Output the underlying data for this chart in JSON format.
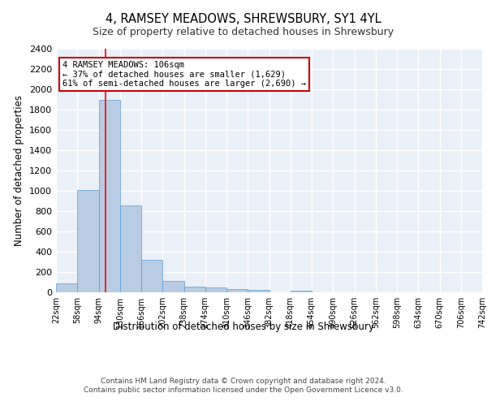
{
  "title": "4, RAMSEY MEADOWS, SHREWSBURY, SY1 4YL",
  "subtitle": "Size of property relative to detached houses in Shrewsbury",
  "xlabel": "Distribution of detached houses by size in Shrewsbury",
  "ylabel": "Number of detached properties",
  "bar_values": [
    90,
    1010,
    1900,
    860,
    320,
    115,
    55,
    50,
    35,
    25,
    0,
    20,
    0,
    0,
    0,
    0,
    0,
    0,
    0,
    0
  ],
  "bin_labels": [
    "22sqm",
    "58sqm",
    "94sqm",
    "130sqm",
    "166sqm",
    "202sqm",
    "238sqm",
    "274sqm",
    "310sqm",
    "346sqm",
    "382sqm",
    "418sqm",
    "454sqm",
    "490sqm",
    "526sqm",
    "562sqm",
    "598sqm",
    "634sqm",
    "670sqm",
    "706sqm",
    "742sqm"
  ],
  "bar_color": "#b8cce4",
  "bar_edge_color": "#5b9bd5",
  "bg_color": "#eaf0f8",
  "grid_color": "#ffffff",
  "red_line_x": 2.33,
  "annotation_text": "4 RAMSEY MEADOWS: 106sqm\n← 37% of detached houses are smaller (1,629)\n61% of semi-detached houses are larger (2,690) →",
  "annotation_box_color": "#ffffff",
  "annotation_box_edge_color": "#cc0000",
  "ylim": [
    0,
    2400
  ],
  "yticks": [
    0,
    200,
    400,
    600,
    800,
    1000,
    1200,
    1400,
    1600,
    1800,
    2000,
    2200,
    2400
  ],
  "footer_text": "Contains HM Land Registry data © Crown copyright and database right 2024.\nContains public sector information licensed under the Open Government Licence v3.0.",
  "n_bins": 20
}
